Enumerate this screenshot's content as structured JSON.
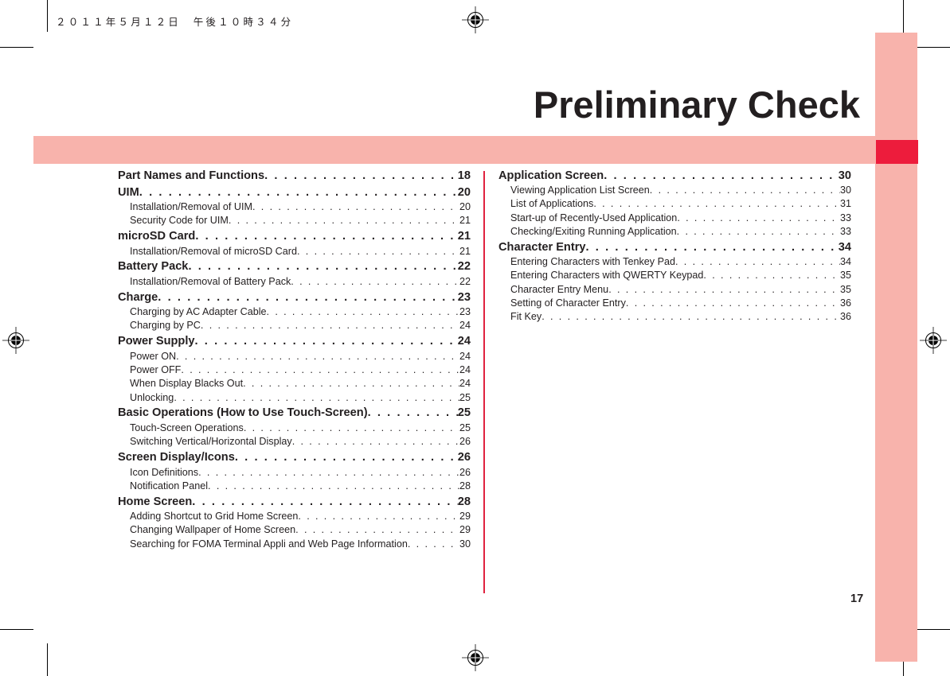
{
  "print_timestamp": "２０１１年５月１２日　午後１０時３４分",
  "chapter_title": "Preliminary Check",
  "page_number": "17",
  "colors": {
    "band_pink": "#f8b3ac",
    "accent_red": "#ed1c3c",
    "divider_red": "#e0223f",
    "text": "#231f20"
  },
  "toc": {
    "left_column": [
      {
        "level": "main",
        "label": "Part Names and Functions",
        "page": "18"
      },
      {
        "level": "main",
        "label": "UIM",
        "page": "20"
      },
      {
        "level": "sub",
        "label": "Installation/Removal of UIM",
        "page": "20"
      },
      {
        "level": "sub",
        "label": "Security Code for UIM",
        "page": "21"
      },
      {
        "level": "main",
        "label": "microSD Card",
        "page": "21"
      },
      {
        "level": "sub",
        "label": "Installation/Removal of microSD Card",
        "page": "21"
      },
      {
        "level": "main",
        "label": "Battery Pack",
        "page": "22"
      },
      {
        "level": "sub",
        "label": "Installation/Removal of Battery Pack",
        "page": "22"
      },
      {
        "level": "main",
        "label": "Charge",
        "page": "23"
      },
      {
        "level": "sub",
        "label": "Charging by AC Adapter Cable",
        "page": "23"
      },
      {
        "level": "sub",
        "label": "Charging by PC",
        "page": "24"
      },
      {
        "level": "main",
        "label": "Power Supply",
        "page": "24"
      },
      {
        "level": "sub",
        "label": "Power ON",
        "page": "24"
      },
      {
        "level": "sub",
        "label": "Power OFF",
        "page": "24"
      },
      {
        "level": "sub",
        "label": "When Display Blacks Out",
        "page": "24"
      },
      {
        "level": "sub",
        "label": "Unlocking",
        "page": "25"
      },
      {
        "level": "main",
        "label": "Basic Operations (How to Use Touch-Screen)",
        "page": "25"
      },
      {
        "level": "sub",
        "label": "Touch-Screen Operations",
        "page": "25"
      },
      {
        "level": "sub",
        "label": "Switching Vertical/Horizontal Display",
        "page": "26"
      },
      {
        "level": "main",
        "label": "Screen Display/Icons",
        "page": "26"
      },
      {
        "level": "sub",
        "label": "Icon Definitions",
        "page": "26"
      },
      {
        "level": "sub",
        "label": "Notification Panel",
        "page": "28"
      },
      {
        "level": "main",
        "label": "Home Screen",
        "page": "28"
      },
      {
        "level": "sub",
        "label": "Adding Shortcut to Grid Home Screen",
        "page": "29"
      },
      {
        "level": "sub",
        "label": "Changing Wallpaper of Home Screen",
        "page": "29"
      },
      {
        "level": "sub",
        "label": "Searching for FOMA Terminal Appli and Web Page Information",
        "page": "30"
      }
    ],
    "right_column": [
      {
        "level": "main",
        "label": "Application Screen",
        "page": "30"
      },
      {
        "level": "sub",
        "label": "Viewing Application List Screen",
        "page": "30"
      },
      {
        "level": "sub",
        "label": "List of Applications",
        "page": "31"
      },
      {
        "level": "sub",
        "label": "Start-up of Recently-Used Application",
        "page": "33"
      },
      {
        "level": "sub",
        "label": "Checking/Exiting Running Application",
        "page": "33"
      },
      {
        "level": "main",
        "label": "Character Entry",
        "page": "34"
      },
      {
        "level": "sub",
        "label": "Entering Characters with Tenkey Pad",
        "page": "34"
      },
      {
        "level": "sub",
        "label": "Entering Characters with QWERTY Keypad",
        "page": "35"
      },
      {
        "level": "sub",
        "label": "Character Entry Menu",
        "page": "35"
      },
      {
        "level": "sub",
        "label": "Setting of Character Entry",
        "page": "36"
      },
      {
        "level": "sub",
        "label": "Fit Key",
        "page": "36"
      }
    ]
  }
}
